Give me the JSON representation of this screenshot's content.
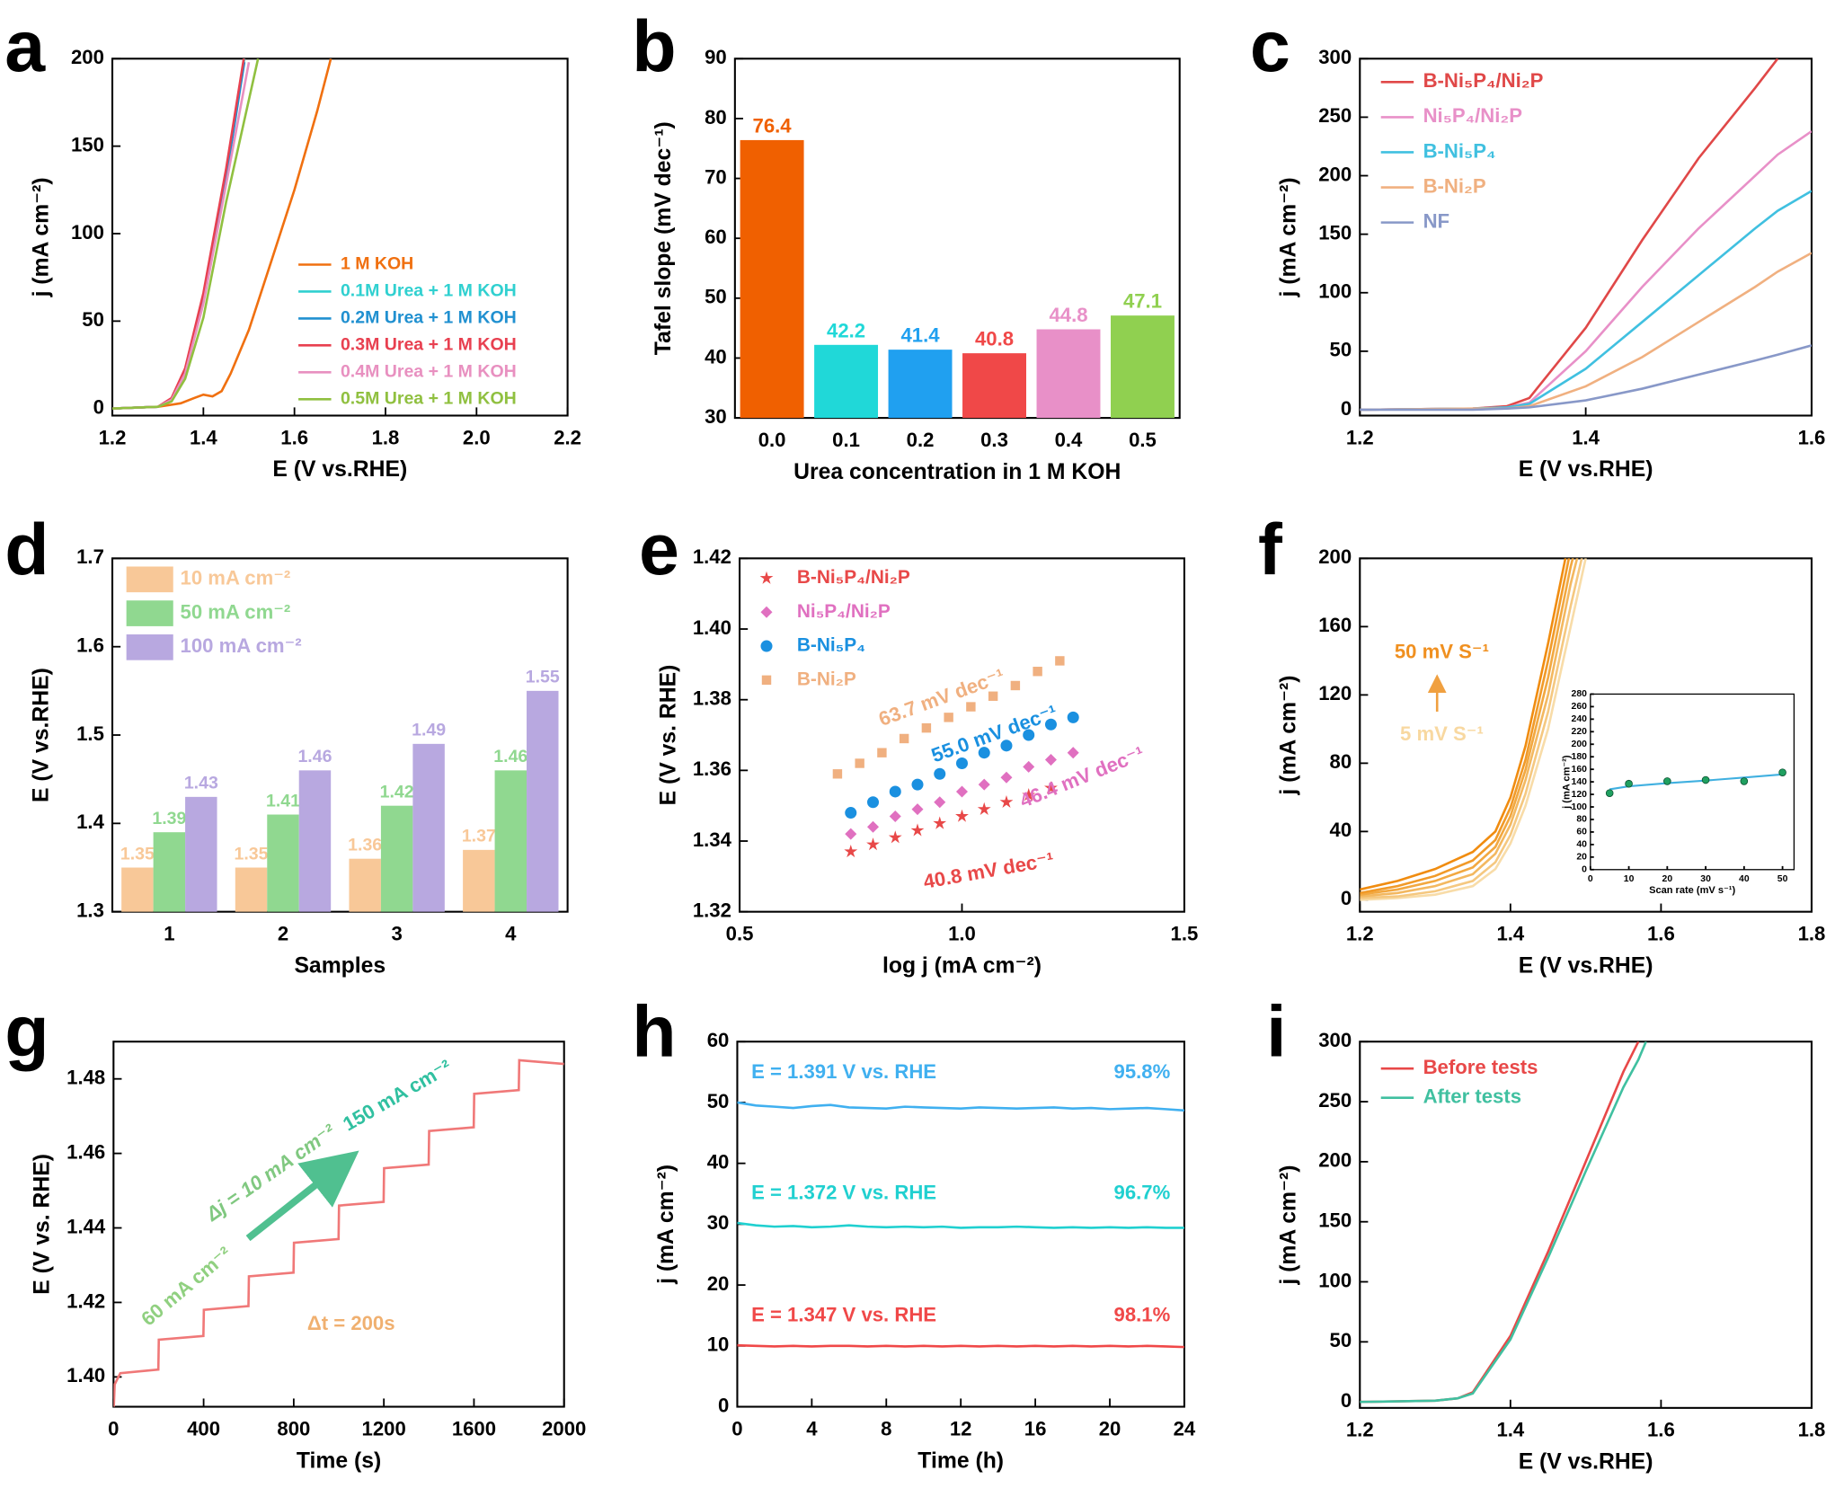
{
  "chart_data": [
    {
      "panel": "a",
      "type": "line",
      "xlabel": "E (V vs.RHE)",
      "ylabel": "j (mA cm⁻²)",
      "xlim": [
        1.2,
        2.2
      ],
      "ylim": [
        -4,
        200
      ],
      "xticks": [
        1.2,
        1.4,
        1.6,
        1.8,
        {
          "value": 2,
          "label": "2.0"
        },
        2.2
      ],
      "yticks": [
        0,
        50,
        100,
        150,
        200
      ],
      "series": [
        {
          "name": "1 M KOH",
          "color": "#f07010",
          "x": [
            1.2,
            1.3,
            1.35,
            1.38,
            1.4,
            1.42,
            1.44,
            1.46,
            1.5,
            1.55,
            1.6,
            1.65,
            1.68
          ],
          "values": [
            0,
            1,
            3,
            6,
            8,
            7,
            10,
            20,
            45,
            85,
            125,
            170,
            200
          ]
        },
        {
          "name": "0.1M Urea + 1 M KOH",
          "color": "#30d0d0",
          "x": [
            1.2,
            1.3,
            1.33,
            1.36,
            1.4,
            1.45,
            1.49
          ],
          "values": [
            0,
            1,
            5,
            22,
            65,
            135,
            200
          ]
        },
        {
          "name": "0.2M Urea + 1 M KOH",
          "color": "#2090d0",
          "x": [
            1.2,
            1.3,
            1.33,
            1.36,
            1.4,
            1.45,
            1.49
          ],
          "values": [
            0,
            1,
            5,
            21,
            63,
            132,
            198
          ]
        },
        {
          "name": "0.3M Urea + 1 M KOH",
          "color": "#e84050",
          "x": [
            1.2,
            1.3,
            1.33,
            1.36,
            1.4,
            1.45,
            1.49
          ],
          "values": [
            0,
            1,
            6,
            23,
            66,
            137,
            202
          ]
        },
        {
          "name": "0.4M Urea + 1 M KOH",
          "color": "#e890c0",
          "x": [
            1.2,
            1.3,
            1.33,
            1.36,
            1.4,
            1.45,
            1.5
          ],
          "values": [
            0,
            1,
            5,
            20,
            60,
            128,
            198
          ]
        },
        {
          "name": "0.5M Urea + 1 M KOH",
          "color": "#90c040",
          "x": [
            1.2,
            1.3,
            1.33,
            1.36,
            1.4,
            1.45,
            1.52
          ],
          "values": [
            0,
            1,
            4,
            17,
            52,
            118,
            200
          ]
        }
      ]
    },
    {
      "panel": "b",
      "type": "bar",
      "xlabel": "Urea concentration in 1 M KOH",
      "ylabel": "Tafel slope (mV dec⁻¹)",
      "categories": [
        "0.0",
        "0.1",
        "0.2",
        "0.3",
        "0.4",
        "0.5"
      ],
      "values": [
        76.4,
        42.2,
        41.4,
        40.8,
        44.8,
        47.1
      ],
      "colors": [
        "#f06000",
        "#20d8d8",
        "#20a0f0",
        "#f04848",
        "#e890c8",
        "#90d050"
      ],
      "ylim": [
        30,
        90
      ],
      "yticks": [
        30,
        40,
        50,
        60,
        70,
        80,
        90
      ]
    },
    {
      "panel": "c",
      "type": "line",
      "xlabel": "E (V vs.RHE)",
      "ylabel": "j (mA cm⁻²)",
      "xlim": [
        1.2,
        1.6
      ],
      "ylim": [
        -5,
        300
      ],
      "xticks": [
        1.2,
        1.4,
        1.6
      ],
      "yticks": [
        0,
        50,
        100,
        150,
        200,
        250,
        300
      ],
      "x": [
        1.2,
        1.3,
        1.33,
        1.35,
        1.4,
        1.45,
        1.5,
        1.55,
        1.57,
        1.6
      ],
      "series": [
        {
          "name": "B-Ni₅P₄/Ni₂P",
          "color": "#e04848",
          "values": [
            0,
            1,
            3,
            10,
            70,
            145,
            215,
            275,
            300,
            null
          ]
        },
        {
          "name": "Ni₅P₄/Ni₂P",
          "color": "#e890c8",
          "values": [
            0,
            1,
            2,
            6,
            50,
            105,
            155,
            200,
            218,
            238
          ]
        },
        {
          "name": "B-Ni₅P₄",
          "color": "#40c0e0",
          "values": [
            0,
            1,
            2,
            5,
            35,
            75,
            115,
            155,
            170,
            187
          ]
        },
        {
          "name": "B-Ni₂P",
          "color": "#f0b080",
          "values": [
            0,
            1,
            1,
            3,
            20,
            45,
            75,
            105,
            118,
            134
          ]
        },
        {
          "name": "NF",
          "color": "#8898c8",
          "values": [
            0,
            0,
            1,
            2,
            8,
            18,
            30,
            42,
            47,
            55
          ]
        }
      ]
    },
    {
      "panel": "d",
      "type": "bar",
      "xlabel": "Samples",
      "ylabel": "E (V vs.RHE)",
      "categories": [
        "1",
        "2",
        "3",
        "4"
      ],
      "ylim": [
        1.3,
        1.7
      ],
      "yticks": [
        1.3,
        1.4,
        1.5,
        1.6,
        1.7
      ],
      "series": [
        {
          "name": "10 mA cm⁻²",
          "color": "#f8c898",
          "values": [
            1.35,
            1.35,
            1.36,
            1.37
          ]
        },
        {
          "name": "50 mA cm⁻²",
          "color": "#90d890",
          "values": [
            1.39,
            1.41,
            1.42,
            1.46
          ]
        },
        {
          "name": "100 mA cm⁻²",
          "color": "#b8a8e0",
          "values": [
            1.43,
            1.46,
            1.49,
            1.55
          ]
        }
      ]
    },
    {
      "panel": "e",
      "type": "scatter",
      "xlabel": "log j (mA cm⁻²)",
      "ylabel": "E (V vs. RHE)",
      "xlim": [
        0.5,
        1.5
      ],
      "ylim": [
        1.32,
        1.42
      ],
      "xticks": [
        0.5,
        {
          "value": 1,
          "label": "1.0"
        },
        1.5
      ],
      "yticks": [
        1.32,
        1.34,
        1.36,
        1.38,
        {
          "value": 1.4,
          "label": "1.40"
        },
        1.42
      ],
      "series": [
        {
          "name": "B-Ni₅P₄/Ni₂P",
          "color": "#e84848",
          "marker": "star",
          "x": [
            0.75,
            0.8,
            0.85,
            0.9,
            0.95,
            1.0,
            1.05,
            1.1,
            1.15,
            1.2
          ],
          "values": [
            1.337,
            1.339,
            1.341,
            1.343,
            1.345,
            1.347,
            1.349,
            1.351,
            1.353,
            1.355
          ]
        },
        {
          "name": "Ni₅P₄/Ni₂P",
          "color": "#e070c0",
          "marker": "diamond",
          "x": [
            0.75,
            0.8,
            0.85,
            0.9,
            0.95,
            1.0,
            1.05,
            1.1,
            1.15,
            1.2,
            1.25
          ],
          "values": [
            1.342,
            1.344,
            1.347,
            1.349,
            1.351,
            1.354,
            1.356,
            1.358,
            1.361,
            1.363,
            1.365
          ]
        },
        {
          "name": "B-Ni₅P₄",
          "color": "#1a90e0",
          "marker": "circle",
          "x": [
            0.75,
            0.8,
            0.85,
            0.9,
            0.95,
            1.0,
            1.05,
            1.1,
            1.15,
            1.2,
            1.25
          ],
          "values": [
            1.348,
            1.351,
            1.354,
            1.356,
            1.359,
            1.362,
            1.365,
            1.367,
            1.37,
            1.373,
            1.375
          ]
        },
        {
          "name": "B-Ni₂P",
          "color": "#f0b080",
          "marker": "square",
          "x": [
            0.72,
            0.77,
            0.82,
            0.87,
            0.92,
            0.97,
            1.02,
            1.07,
            1.12,
            1.17,
            1.22
          ],
          "values": [
            1.359,
            1.362,
            1.365,
            1.369,
            1.372,
            1.375,
            1.378,
            1.381,
            1.384,
            1.388,
            1.391
          ]
        }
      ],
      "annotations": [
        {
          "text": "63.7 mV dec⁻¹",
          "color": "#f0b080"
        },
        {
          "text": "55.0 mV dec⁻¹",
          "color": "#1a90e0"
        },
        {
          "text": "46.4 mV dec⁻¹",
          "color": "#e070c0"
        },
        {
          "text": "40.8 mV dec⁻¹",
          "color": "#e84848"
        }
      ]
    },
    {
      "panel": "f",
      "type": "line",
      "xlabel": "E (V vs.RHE)",
      "ylabel": "j (mA cm⁻²)",
      "xlim": [
        1.2,
        1.8
      ],
      "ylim": [
        -7,
        200
      ],
      "xticks": [
        1.2,
        1.4,
        1.6,
        1.8
      ],
      "yticks": [
        0,
        40,
        80,
        120,
        160,
        200
      ],
      "x": [
        1.2,
        1.25,
        1.3,
        1.35,
        1.38,
        1.4,
        1.42,
        1.45,
        1.48,
        1.5
      ],
      "series": [
        {
          "color": "#f8dca8",
          "values": [
            0,
            1,
            3,
            8,
            18,
            33,
            55,
            100,
            160,
            200
          ]
        },
        {
          "color": "#f5c880",
          "values": [
            1,
            2,
            5,
            11,
            22,
            38,
            62,
            110,
            172,
            210
          ]
        },
        {
          "color": "#f3b860",
          "values": [
            2,
            4,
            8,
            15,
            27,
            44,
            70,
            120,
            185,
            220
          ]
        },
        {
          "color": "#f2a840",
          "values": [
            3,
            6,
            11,
            19,
            31,
            49,
            76,
            130,
            195,
            230
          ]
        },
        {
          "color": "#f19a28",
          "values": [
            4,
            8,
            14,
            23,
            35,
            54,
            82,
            140,
            205,
            240
          ]
        },
        {
          "color": "#f08c10",
          "values": [
            6,
            11,
            18,
            28,
            40,
            60,
            90,
            150,
            215,
            250
          ]
        }
      ],
      "annotations": [
        {
          "text": "50 mV S⁻¹",
          "color": "#f09020"
        },
        {
          "text": "5 mV S⁻¹",
          "color": "#f8d8a0"
        }
      ],
      "inset": {
        "type": "scatter",
        "xlabel": "Scan rate (mV s⁻¹)",
        "ylabel": "j (mA cm⁻²)",
        "xlim": [
          0,
          53
        ],
        "ylim": [
          0,
          280
        ],
        "xticks": [
          0,
          10,
          20,
          30,
          40,
          50
        ],
        "yticks": [
          0,
          20,
          40,
          60,
          80,
          100,
          120,
          140,
          160,
          180,
          200,
          220,
          240,
          260,
          280
        ],
        "x": [
          5,
          10,
          20,
          30,
          40,
          50
        ],
        "values": [
          122,
          137,
          141,
          143,
          141,
          155
        ],
        "color": "#20a060",
        "fit": [
          128,
          133,
          138,
          142,
          147,
          152
        ],
        "fit_color": "#40b0e0"
      }
    },
    {
      "panel": "g",
      "type": "line",
      "xlabel": "Time (s)",
      "ylabel": "E (V vs. RHE)",
      "xlim": [
        0,
        2000
      ],
      "ylim": [
        1.392,
        1.49
      ],
      "xticks": [
        0,
        400,
        800,
        1200,
        1600,
        2000
      ],
      "yticks": [
        {
          "value": 1.4,
          "label": "1.40"
        },
        1.42,
        1.44,
        1.46,
        1.48
      ],
      "x": [
        0,
        5,
        30,
        199,
        201,
        399,
        401,
        599,
        601,
        799,
        801,
        999,
        1001,
        1199,
        1201,
        1399,
        1401,
        1599,
        1601,
        1799,
        1801,
        2000
      ],
      "series": [
        {
          "color": "#f07878",
          "values": [
            1.39,
            1.398,
            1.401,
            1.402,
            1.41,
            1.411,
            1.418,
            1.419,
            1.427,
            1.428,
            1.436,
            1.437,
            1.446,
            1.447,
            1.456,
            1.457,
            1.466,
            1.467,
            1.476,
            1.477,
            1.485,
            1.484
          ]
        }
      ],
      "annotations": [
        {
          "text": "60 mA cm⁻²",
          "color": "#90d080"
        },
        {
          "text": "Δj = 10 mA cm⁻²",
          "color": "#80c880"
        },
        {
          "text": "150 mA cm⁻²",
          "color": "#30c0a0"
        },
        {
          "text": "Δt = 200s",
          "color": "#f0b070"
        }
      ]
    },
    {
      "panel": "h",
      "type": "line",
      "xlabel": "Time (h)",
      "ylabel": "j (mA cm⁻²)",
      "xlim": [
        0,
        24
      ],
      "ylim": [
        0,
        60
      ],
      "xticks": [
        0,
        4,
        8,
        12,
        16,
        20,
        24
      ],
      "yticks": [
        0,
        10,
        20,
        30,
        40,
        50,
        60
      ],
      "x": [
        0,
        1,
        2,
        3,
        4,
        5,
        6,
        7,
        8,
        9,
        10,
        11,
        12,
        13,
        14,
        15,
        16,
        17,
        18,
        19,
        20,
        21,
        22,
        23,
        24
      ],
      "series": [
        {
          "name": "E = 1.391 V vs. RHE",
          "retention": "95.8%",
          "color": "#40b0f0",
          "values": [
            50,
            49.5,
            49.3,
            49.1,
            49.4,
            49.6,
            49.2,
            49.1,
            49.0,
            49.3,
            49.2,
            49.1,
            49.0,
            49.2,
            49.1,
            49.0,
            49.1,
            49.2,
            49.0,
            49.1,
            48.9,
            49.0,
            49.1,
            48.9,
            48.7
          ]
        },
        {
          "name": "E = 1.372 V vs. RHE",
          "retention": "96.7%",
          "color": "#20d0d0",
          "values": [
            30.2,
            29.8,
            29.6,
            29.7,
            29.5,
            29.6,
            29.8,
            29.6,
            29.5,
            29.6,
            29.5,
            29.6,
            29.4,
            29.5,
            29.5,
            29.6,
            29.5,
            29.4,
            29.5,
            29.4,
            29.5,
            29.4,
            29.5,
            29.4,
            29.4
          ]
        },
        {
          "name": "E = 1.347 V vs. RHE",
          "retention": "98.1%",
          "color": "#f04848",
          "values": [
            10.1,
            10,
            9.9,
            10,
            9.9,
            10,
            10,
            9.9,
            10,
            9.9,
            10,
            9.9,
            10,
            9.9,
            10,
            9.9,
            10,
            9.9,
            10,
            9.9,
            10,
            9.9,
            10,
            9.9,
            9.8
          ]
        }
      ]
    },
    {
      "panel": "i",
      "type": "line",
      "xlabel": "E (V vs.RHE)",
      "ylabel": "j (mA cm⁻²)",
      "xlim": [
        1.2,
        1.8
      ],
      "ylim": [
        -5,
        300
      ],
      "xticks": [
        1.2,
        1.4,
        1.6,
        1.8
      ],
      "yticks": [
        0,
        50,
        100,
        150,
        200,
        250,
        300
      ],
      "x": [
        1.2,
        1.3,
        1.33,
        1.35,
        1.4,
        1.45,
        1.5,
        1.55,
        1.57,
        1.58
      ],
      "series": [
        {
          "name": "Before tests",
          "color": "#e84848",
          "values": [
            0,
            1,
            3,
            8,
            55,
            125,
            200,
            275,
            300,
            null
          ]
        },
        {
          "name": "After tests",
          "color": "#40c0a0",
          "values": [
            0,
            1,
            3,
            7,
            52,
            120,
            192,
            262,
            285,
            300
          ]
        }
      ]
    }
  ]
}
